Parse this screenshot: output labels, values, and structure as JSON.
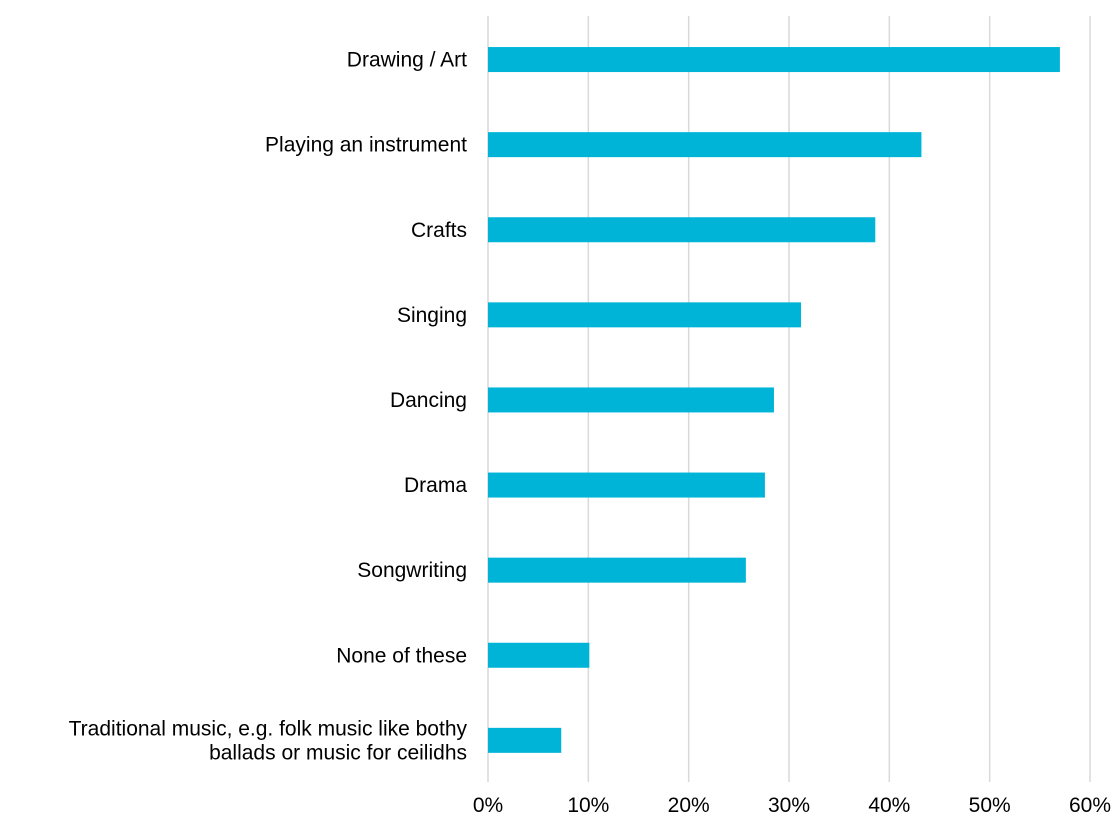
{
  "chart_data": {
    "type": "bar",
    "orientation": "horizontal",
    "categories": [
      "Drawing / Art",
      "Playing an instrument",
      "Crafts",
      "Singing",
      "Dancing",
      "Drama",
      "Songwriting",
      "None of these",
      "Traditional music, e.g. folk music like bothy ballads or music for ceilidhs"
    ],
    "category_lines": [
      [
        "Drawing / Art"
      ],
      [
        "Playing an instrument"
      ],
      [
        "Crafts"
      ],
      [
        "Singing"
      ],
      [
        "Dancing"
      ],
      [
        "Drama"
      ],
      [
        "Songwriting"
      ],
      [
        "None of these"
      ],
      [
        "Traditional music, e.g. folk music like bothy",
        "ballads or music for ceilidhs"
      ]
    ],
    "values": [
      57,
      43.2,
      38.6,
      31.2,
      28.5,
      27.6,
      25.7,
      10.1,
      7.3
    ],
    "value_unit": "%",
    "xlim": [
      0,
      60
    ],
    "xticks": [
      0,
      10,
      20,
      30,
      40,
      50,
      60
    ],
    "xtick_labels": [
      "0%",
      "10%",
      "20%",
      "30%",
      "40%",
      "50%",
      "60%"
    ],
    "grid": "vertical",
    "legend": "none",
    "title": "",
    "xlabel": "",
    "ylabel": "",
    "bar_color": "#00b4d8",
    "grid_color": "#d9d9d9"
  }
}
